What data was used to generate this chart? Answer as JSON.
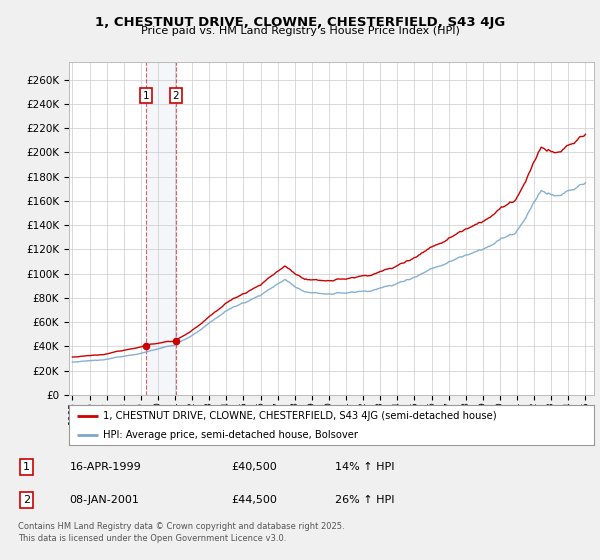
{
  "title": "1, CHESTNUT DRIVE, CLOWNE, CHESTERFIELD, S43 4JG",
  "subtitle": "Price paid vs. HM Land Registry's House Price Index (HPI)",
  "ylabel_ticks": [
    "£0",
    "£20K",
    "£40K",
    "£60K",
    "£80K",
    "£100K",
    "£120K",
    "£140K",
    "£160K",
    "£180K",
    "£200K",
    "£220K",
    "£240K",
    "£260K"
  ],
  "ytick_values": [
    0,
    20000,
    40000,
    60000,
    80000,
    100000,
    120000,
    140000,
    160000,
    180000,
    200000,
    220000,
    240000,
    260000
  ],
  "ylim": [
    0,
    275000
  ],
  "legend_line1": "1, CHESTNUT DRIVE, CLOWNE, CHESTERFIELD, S43 4JG (semi-detached house)",
  "legend_line2": "HPI: Average price, semi-detached house, Bolsover",
  "line1_color": "#cc0000",
  "line2_color": "#7aa8cc",
  "transaction1_date": "16-APR-1999",
  "transaction1_price": "£40,500",
  "transaction1_hpi": "14% ↑ HPI",
  "transaction2_date": "08-JAN-2001",
  "transaction2_price": "£44,500",
  "transaction2_hpi": "26% ↑ HPI",
  "footer": "Contains HM Land Registry data © Crown copyright and database right 2025.\nThis data is licensed under the Open Government Licence v3.0.",
  "background_color": "#f0f0f0",
  "plot_bg_color": "#ffffff",
  "grid_color": "#cccccc",
  "sale1_year": 1999.29,
  "sale1_price": 40500,
  "sale2_year": 2001.04,
  "sale2_price": 44500
}
